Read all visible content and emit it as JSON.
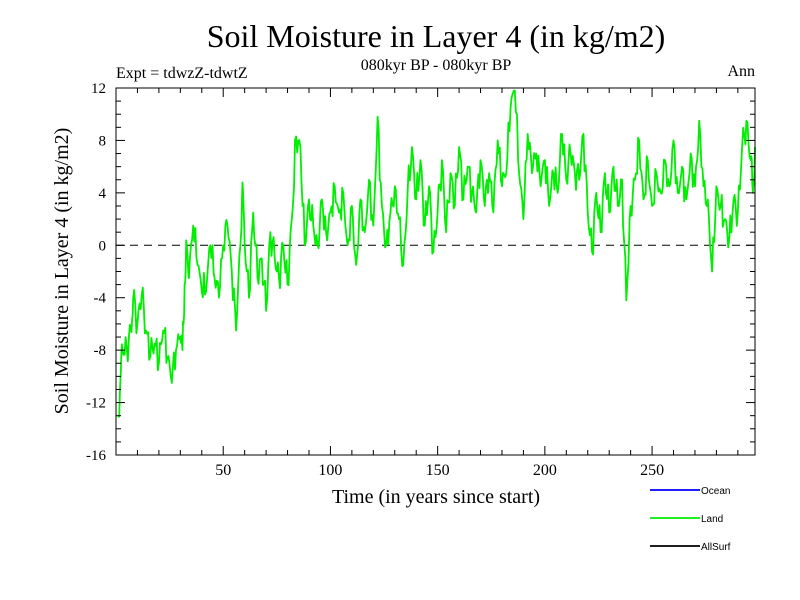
{
  "chart_data": {
    "type": "line",
    "title": "Soil Moisture in Layer 4 (in kg/m2)",
    "subtitle": "080kyr BP - 080kyr BP",
    "experiment": "Expt = tdwzZ-tdwtZ",
    "season": "Ann",
    "xlabel": "Time (in years since start)",
    "ylabel": "Soil Moisture in Layer 4 (in kg/m2)",
    "xlim": [
      0,
      298
    ],
    "ylim": [
      -16,
      12
    ],
    "x_ticks": [
      50,
      100,
      150,
      200,
      250
    ],
    "y_ticks": [
      12,
      8,
      4,
      0,
      -4,
      -8,
      -12,
      -16
    ],
    "y_tick_labels": [
      "12",
      "8",
      "4",
      "0",
      "-4",
      "-8",
      "-12",
      "-16"
    ],
    "zero_line": true,
    "grid": false,
    "legend_position": "bottom-right",
    "legend": [
      {
        "name": "Ocean",
        "color": "#0000ff"
      },
      {
        "name": "Land",
        "color": "#00ee00"
      },
      {
        "name": "AllSurf",
        "color": "#000000"
      }
    ],
    "series": [
      {
        "name": "Land",
        "color": "#00ee00",
        "anchors": [
          [
            1,
            -13.0
          ],
          [
            2,
            -10.5
          ],
          [
            3,
            -8.0
          ],
          [
            5,
            -7.8
          ],
          [
            7,
            -6.5
          ],
          [
            8,
            -4.0
          ],
          [
            10,
            -6.0
          ],
          [
            12,
            -3.8
          ],
          [
            14,
            -6.5
          ],
          [
            16,
            -8.5
          ],
          [
            18,
            -7.5
          ],
          [
            20,
            -9.0
          ],
          [
            22,
            -6.5
          ],
          [
            24,
            -8.5
          ],
          [
            26,
            -10.5
          ],
          [
            28,
            -8.0
          ],
          [
            30,
            -7.0
          ],
          [
            31,
            -8.0
          ],
          [
            32,
            -3.0
          ],
          [
            33,
            0.0
          ],
          [
            34,
            -2.5
          ],
          [
            36,
            1.5
          ],
          [
            38,
            -1.5
          ],
          [
            40,
            -3.5
          ],
          [
            42,
            -3.5
          ],
          [
            44,
            0.0
          ],
          [
            46,
            -2.5
          ],
          [
            48,
            -4.0
          ],
          [
            50,
            0.0
          ],
          [
            52,
            1.5
          ],
          [
            54,
            -2.0
          ],
          [
            56,
            -6.5
          ],
          [
            58,
            0.0
          ],
          [
            59,
            4.8
          ],
          [
            60,
            0.0
          ],
          [
            62,
            -4.0
          ],
          [
            64,
            2.5
          ],
          [
            66,
            -2.5
          ],
          [
            68,
            -1.0
          ],
          [
            70,
            -5.0
          ],
          [
            72,
            1.0
          ],
          [
            74,
            -1.0
          ],
          [
            76,
            -2.5
          ],
          [
            78,
            0.0
          ],
          [
            80,
            -3.0
          ],
          [
            82,
            2.0
          ],
          [
            84,
            8.3
          ],
          [
            86,
            7.5
          ],
          [
            88,
            0.0
          ],
          [
            90,
            3.5
          ],
          [
            92,
            1.5
          ],
          [
            94,
            0.0
          ],
          [
            96,
            3.5
          ],
          [
            98,
            1.0
          ],
          [
            100,
            2.5
          ],
          [
            102,
            4.5
          ],
          [
            104,
            2.5
          ],
          [
            106,
            4.0
          ],
          [
            108,
            0.0
          ],
          [
            110,
            3.0
          ],
          [
            112,
            -1.5
          ],
          [
            114,
            3.5
          ],
          [
            116,
            1.0
          ],
          [
            118,
            5.0
          ],
          [
            120,
            1.5
          ],
          [
            122,
            9.8
          ],
          [
            124,
            3.0
          ],
          [
            126,
            0.0
          ],
          [
            128,
            2.5
          ],
          [
            130,
            4.5
          ],
          [
            132,
            2.0
          ],
          [
            134,
            -1.5
          ],
          [
            136,
            4.0
          ],
          [
            138,
            7.5
          ],
          [
            140,
            3.5
          ],
          [
            142,
            6.5
          ],
          [
            144,
            1.5
          ],
          [
            146,
            4.5
          ],
          [
            148,
            -0.5
          ],
          [
            150,
            2.5
          ],
          [
            152,
            6.5
          ],
          [
            154,
            1.0
          ],
          [
            156,
            5.5
          ],
          [
            158,
            3.0
          ],
          [
            160,
            7.5
          ],
          [
            162,
            3.5
          ],
          [
            164,
            6.0
          ],
          [
            166,
            4.0
          ],
          [
            168,
            2.5
          ],
          [
            170,
            6.5
          ],
          [
            172,
            3.0
          ],
          [
            174,
            5.5
          ],
          [
            176,
            2.5
          ],
          [
            178,
            8.0
          ],
          [
            180,
            4.5
          ],
          [
            182,
            5.5
          ],
          [
            184,
            10.5
          ],
          [
            186,
            11.8
          ],
          [
            188,
            5.5
          ],
          [
            190,
            2.0
          ],
          [
            192,
            8.5
          ],
          [
            194,
            5.5
          ],
          [
            196,
            7.0
          ],
          [
            198,
            4.5
          ],
          [
            200,
            6.5
          ],
          [
            202,
            3.0
          ],
          [
            204,
            5.5
          ],
          [
            206,
            4.0
          ],
          [
            208,
            8.5
          ],
          [
            210,
            5.0
          ],
          [
            212,
            7.0
          ],
          [
            214,
            5.5
          ],
          [
            216,
            5.0
          ],
          [
            218,
            8.5
          ],
          [
            220,
            2.5
          ],
          [
            222,
            -0.5
          ],
          [
            224,
            4.0
          ],
          [
            226,
            1.0
          ],
          [
            228,
            5.5
          ],
          [
            230,
            2.5
          ],
          [
            232,
            6.0
          ],
          [
            234,
            3.0
          ],
          [
            236,
            5.0
          ],
          [
            238,
            -4.2
          ],
          [
            240,
            3.0
          ],
          [
            242,
            5.0
          ],
          [
            244,
            8.0
          ],
          [
            246,
            3.5
          ],
          [
            248,
            6.5
          ],
          [
            250,
            3.0
          ],
          [
            252,
            5.5
          ],
          [
            254,
            4.0
          ],
          [
            256,
            6.5
          ],
          [
            258,
            4.5
          ],
          [
            260,
            8.0
          ],
          [
            262,
            4.0
          ],
          [
            264,
            6.0
          ],
          [
            266,
            3.5
          ],
          [
            268,
            7.0
          ],
          [
            270,
            4.5
          ],
          [
            272,
            9.5
          ],
          [
            274,
            4.5
          ],
          [
            276,
            3.5
          ],
          [
            278,
            -2.0
          ],
          [
            280,
            4.5
          ],
          [
            282,
            3.0
          ],
          [
            284,
            2.0
          ],
          [
            286,
            0.5
          ],
          [
            288,
            3.5
          ],
          [
            290,
            2.5
          ],
          [
            292,
            7.5
          ],
          [
            294,
            9.5
          ],
          [
            296,
            6.5
          ],
          [
            297,
            4.0
          ],
          [
            298,
            7.5
          ]
        ]
      }
    ]
  }
}
